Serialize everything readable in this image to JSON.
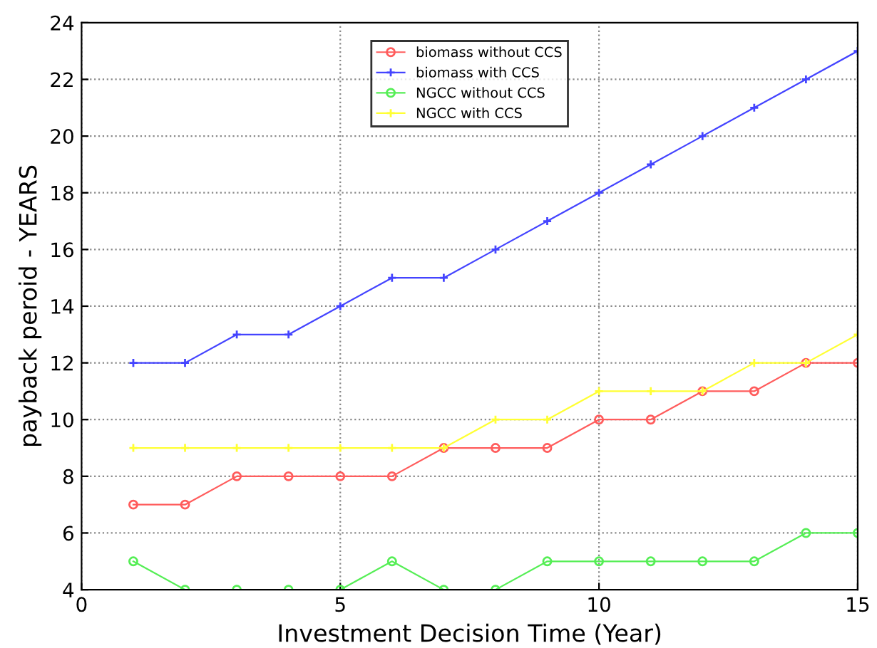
{
  "chart_data": {
    "type": "line",
    "xlabel": "Investment Decision Time (Year)",
    "ylabel": "payback peroid - YEARS",
    "x": [
      1,
      2,
      3,
      4,
      5,
      6,
      7,
      8,
      9,
      10,
      11,
      12,
      13,
      14,
      15
    ],
    "series": [
      {
        "name": "biomass without CCS",
        "color": "#ff5c5c",
        "marker": "circle",
        "values": [
          7,
          7,
          8,
          8,
          8,
          8,
          9,
          9,
          9,
          10,
          10,
          11,
          11,
          12,
          12
        ]
      },
      {
        "name": "biomass with CCS",
        "color": "#4444ff",
        "marker": "cross",
        "values": [
          12,
          12,
          13,
          13,
          14,
          15,
          15,
          16,
          17,
          18,
          19,
          20,
          21,
          22,
          23
        ]
      },
      {
        "name": "NGCC without CCS",
        "color": "#55ee55",
        "marker": "circle",
        "values": [
          5,
          4,
          4,
          4,
          4,
          5,
          4,
          4,
          5,
          5,
          5,
          5,
          5,
          6,
          6
        ]
      },
      {
        "name": "NGCC with CCS",
        "color": "#ffff33",
        "marker": "cross",
        "values": [
          9,
          9,
          9,
          9,
          9,
          9,
          9,
          10,
          10,
          11,
          11,
          11,
          12,
          12,
          13
        ]
      }
    ],
    "xlim": [
      0,
      15
    ],
    "xticks": [
      0,
      5,
      10,
      15
    ],
    "ylim": [
      4,
      24
    ],
    "yticks": [
      4,
      6,
      8,
      10,
      12,
      14,
      16,
      18,
      20,
      22,
      24
    ],
    "grid": true,
    "legend": "top",
    "line_style": "solid"
  }
}
